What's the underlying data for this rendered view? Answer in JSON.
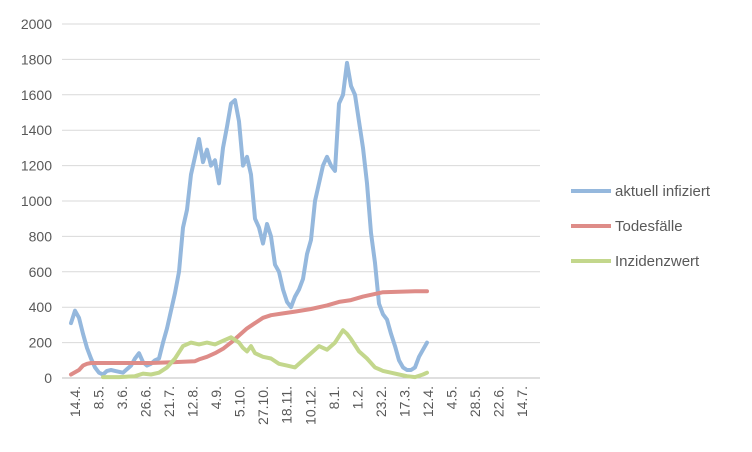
{
  "chart_data": {
    "type": "line",
    "title": "",
    "xlabel": "",
    "ylabel": "",
    "ylim": [
      0,
      2000
    ],
    "yticks": [
      0,
      200,
      400,
      600,
      800,
      1000,
      1200,
      1400,
      1600,
      1800,
      2000
    ],
    "grid": true,
    "legend_position": "right",
    "x_tick_labels": [
      "14.4.",
      "8.5.",
      "3.6.",
      "26.6.",
      "21.7.",
      "12.8.",
      "4.9.",
      "5.10.",
      "27.10.",
      "18.11.",
      "10.12.",
      "8.1.",
      "1.2.",
      "23.2.",
      "17.3.",
      "12.4.",
      "4.5.",
      "28.5.",
      "22.6.",
      "14.7."
    ],
    "x_count": 119,
    "series": [
      {
        "name": "aktuell infiziert",
        "color": "#95b8dd",
        "points": [
          [
            0,
            310
          ],
          [
            1,
            380
          ],
          [
            2,
            340
          ],
          [
            3,
            250
          ],
          [
            4,
            170
          ],
          [
            5,
            110
          ],
          [
            6,
            60
          ],
          [
            7,
            30
          ],
          [
            8,
            20
          ],
          [
            9,
            40
          ],
          [
            10,
            45
          ],
          [
            11,
            40
          ],
          [
            12,
            35
          ],
          [
            13,
            30
          ],
          [
            14,
            50
          ],
          [
            15,
            70
          ],
          [
            16,
            110
          ],
          [
            17,
            140
          ],
          [
            18,
            90
          ],
          [
            19,
            70
          ],
          [
            20,
            80
          ],
          [
            21,
            100
          ],
          [
            22,
            110
          ],
          [
            23,
            200
          ],
          [
            24,
            280
          ],
          [
            25,
            380
          ],
          [
            26,
            480
          ],
          [
            27,
            600
          ],
          [
            28,
            850
          ],
          [
            29,
            950
          ],
          [
            30,
            1150
          ],
          [
            31,
            1250
          ],
          [
            32,
            1350
          ],
          [
            33,
            1220
          ],
          [
            34,
            1290
          ],
          [
            35,
            1200
          ],
          [
            36,
            1230
          ],
          [
            37,
            1100
          ],
          [
            38,
            1300
          ],
          [
            39,
            1420
          ],
          [
            40,
            1550
          ],
          [
            41,
            1570
          ],
          [
            42,
            1450
          ],
          [
            43,
            1200
          ],
          [
            44,
            1250
          ],
          [
            45,
            1150
          ],
          [
            46,
            900
          ],
          [
            47,
            850
          ],
          [
            48,
            760
          ],
          [
            49,
            870
          ],
          [
            50,
            800
          ],
          [
            51,
            640
          ],
          [
            52,
            600
          ],
          [
            53,
            500
          ],
          [
            54,
            430
          ],
          [
            55,
            400
          ],
          [
            56,
            460
          ],
          [
            57,
            500
          ],
          [
            58,
            560
          ],
          [
            59,
            700
          ],
          [
            60,
            780
          ],
          [
            61,
            1000
          ],
          [
            62,
            1100
          ],
          [
            63,
            1200
          ],
          [
            64,
            1250
          ],
          [
            65,
            1200
          ],
          [
            66,
            1170
          ],
          [
            67,
            1550
          ],
          [
            68,
            1600
          ],
          [
            69,
            1780
          ],
          [
            70,
            1650
          ],
          [
            71,
            1600
          ],
          [
            72,
            1450
          ],
          [
            73,
            1300
          ],
          [
            74,
            1100
          ],
          [
            75,
            820
          ],
          [
            76,
            650
          ],
          [
            77,
            420
          ],
          [
            78,
            360
          ],
          [
            79,
            330
          ],
          [
            80,
            250
          ],
          [
            81,
            180
          ],
          [
            82,
            100
          ],
          [
            83,
            60
          ],
          [
            84,
            45
          ],
          [
            85,
            45
          ],
          [
            86,
            60
          ],
          [
            87,
            120
          ],
          [
            88,
            160
          ],
          [
            89,
            200
          ]
        ]
      },
      {
        "name": "Todesfälle",
        "color": "#de8c88",
        "points": [
          [
            0,
            20
          ],
          [
            2,
            45
          ],
          [
            3,
            70
          ],
          [
            4,
            80
          ],
          [
            5,
            85
          ],
          [
            10,
            85
          ],
          [
            20,
            85
          ],
          [
            26,
            90
          ],
          [
            28,
            92
          ],
          [
            31,
            95
          ],
          [
            32,
            105
          ],
          [
            34,
            120
          ],
          [
            36,
            140
          ],
          [
            38,
            165
          ],
          [
            40,
            200
          ],
          [
            42,
            240
          ],
          [
            44,
            280
          ],
          [
            46,
            310
          ],
          [
            48,
            340
          ],
          [
            50,
            355
          ],
          [
            53,
            365
          ],
          [
            56,
            375
          ],
          [
            60,
            390
          ],
          [
            64,
            410
          ],
          [
            67,
            430
          ],
          [
            70,
            440
          ],
          [
            73,
            460
          ],
          [
            76,
            475
          ],
          [
            78,
            485
          ],
          [
            82,
            487
          ],
          [
            86,
            490
          ],
          [
            89,
            490
          ]
        ]
      },
      {
        "name": "Inzidenzwert",
        "color": "#c3d78c",
        "points": [
          [
            8,
            5
          ],
          [
            12,
            5
          ],
          [
            16,
            10
          ],
          [
            18,
            25
          ],
          [
            20,
            20
          ],
          [
            22,
            30
          ],
          [
            24,
            60
          ],
          [
            26,
            110
          ],
          [
            28,
            180
          ],
          [
            30,
            200
          ],
          [
            32,
            190
          ],
          [
            34,
            200
          ],
          [
            36,
            190
          ],
          [
            38,
            210
          ],
          [
            40,
            230
          ],
          [
            42,
            200
          ],
          [
            43,
            170
          ],
          [
            44,
            150
          ],
          [
            45,
            180
          ],
          [
            46,
            140
          ],
          [
            48,
            120
          ],
          [
            50,
            110
          ],
          [
            52,
            80
          ],
          [
            54,
            70
          ],
          [
            56,
            60
          ],
          [
            58,
            100
          ],
          [
            60,
            140
          ],
          [
            62,
            180
          ],
          [
            64,
            160
          ],
          [
            66,
            200
          ],
          [
            68,
            270
          ],
          [
            69,
            250
          ],
          [
            70,
            220
          ],
          [
            72,
            150
          ],
          [
            74,
            110
          ],
          [
            76,
            60
          ],
          [
            78,
            40
          ],
          [
            80,
            30
          ],
          [
            82,
            20
          ],
          [
            84,
            10
          ],
          [
            86,
            5
          ],
          [
            88,
            20
          ],
          [
            89,
            30
          ]
        ]
      }
    ]
  }
}
